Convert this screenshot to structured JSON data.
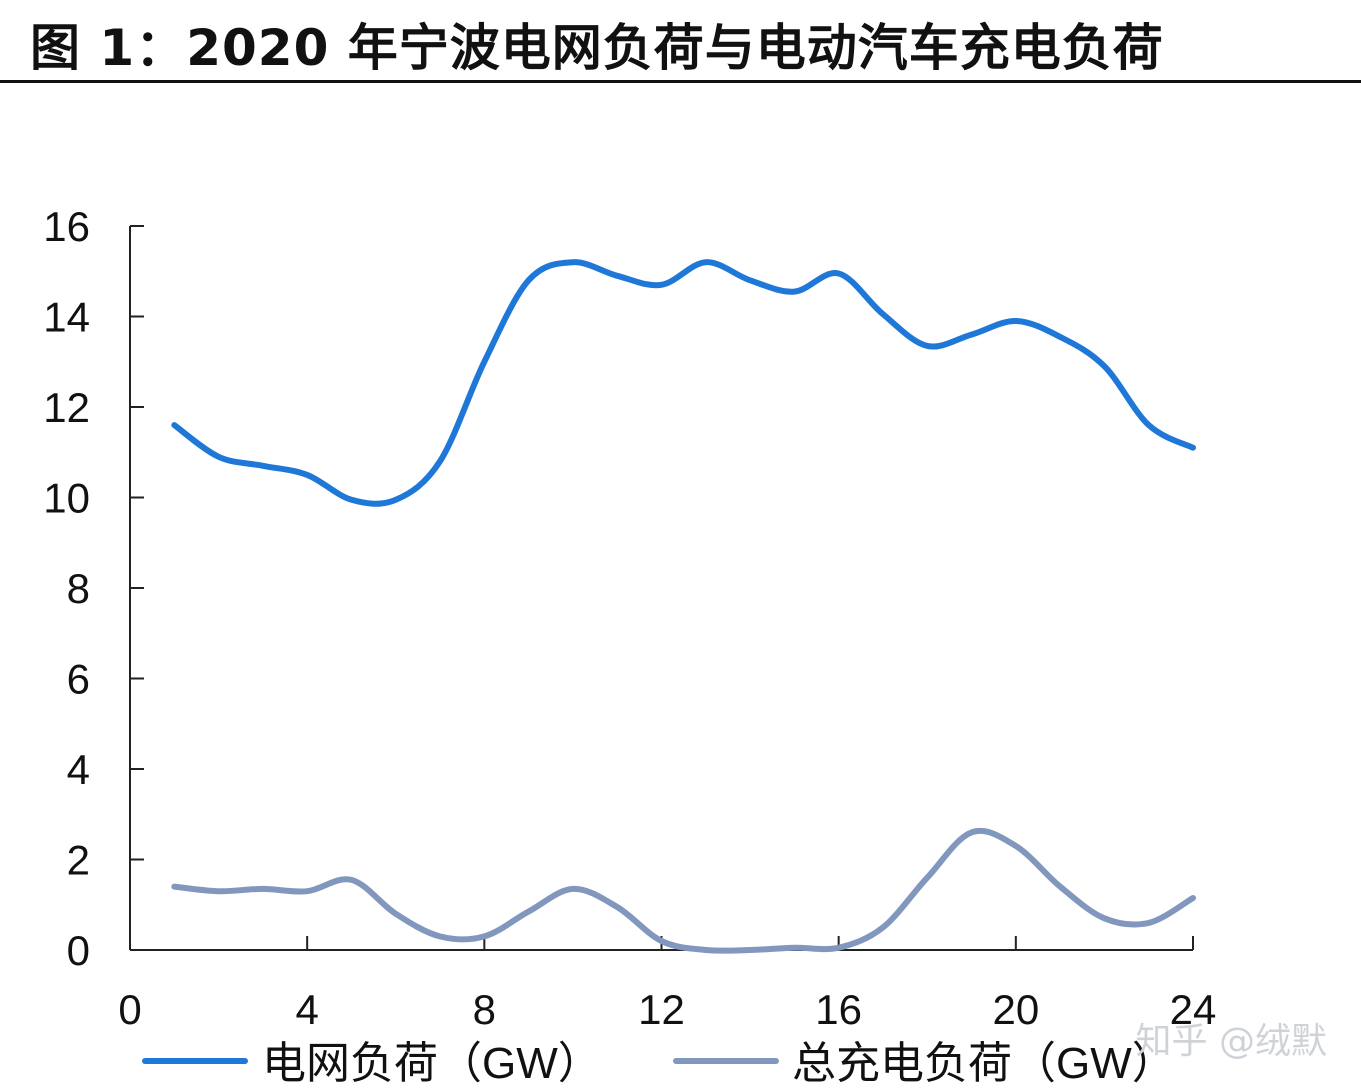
{
  "figure": {
    "title": "图 1：2020 年宁波电网负荷与电动汽车充电负荷",
    "watermark": "知乎 @绒默"
  },
  "chart_data": {
    "type": "line",
    "title": "2020 年宁波电网负荷与电动汽车充电负荷",
    "xlabel": "",
    "ylabel": "",
    "xlim": [
      0,
      24
    ],
    "ylim": [
      0,
      16
    ],
    "xticks": [
      0,
      4,
      8,
      12,
      16,
      20,
      24
    ],
    "yticks": [
      0,
      2,
      4,
      6,
      8,
      10,
      12,
      14,
      16
    ],
    "legend_position": "bottom",
    "grid": false,
    "series": [
      {
        "name": "电网负荷（GW）",
        "color": "#1f78d8",
        "x": [
          1,
          2,
          3,
          4,
          5,
          6,
          7,
          8,
          9,
          10,
          11,
          12,
          13,
          14,
          15,
          16,
          17,
          18,
          19,
          20,
          21,
          22,
          23,
          24
        ],
        "values": [
          11.6,
          10.9,
          10.7,
          10.5,
          9.95,
          9.95,
          10.8,
          13.0,
          14.8,
          15.2,
          14.9,
          14.7,
          15.2,
          14.8,
          14.55,
          14.95,
          14.05,
          13.35,
          13.6,
          13.9,
          13.55,
          12.9,
          11.6,
          11.1
        ]
      },
      {
        "name": "总充电负荷（GW）",
        "color": "#8197be",
        "x": [
          1,
          2,
          3,
          4,
          5,
          6,
          7,
          8,
          9,
          10,
          11,
          12,
          13,
          14,
          15,
          16,
          17,
          18,
          19,
          20,
          21,
          22,
          23,
          24
        ],
        "values": [
          1.4,
          1.3,
          1.35,
          1.3,
          1.55,
          0.8,
          0.3,
          0.3,
          0.85,
          1.35,
          0.95,
          0.2,
          0.0,
          0.0,
          0.05,
          0.05,
          0.5,
          1.6,
          2.6,
          2.3,
          1.4,
          0.7,
          0.6,
          1.15
        ]
      }
    ]
  }
}
